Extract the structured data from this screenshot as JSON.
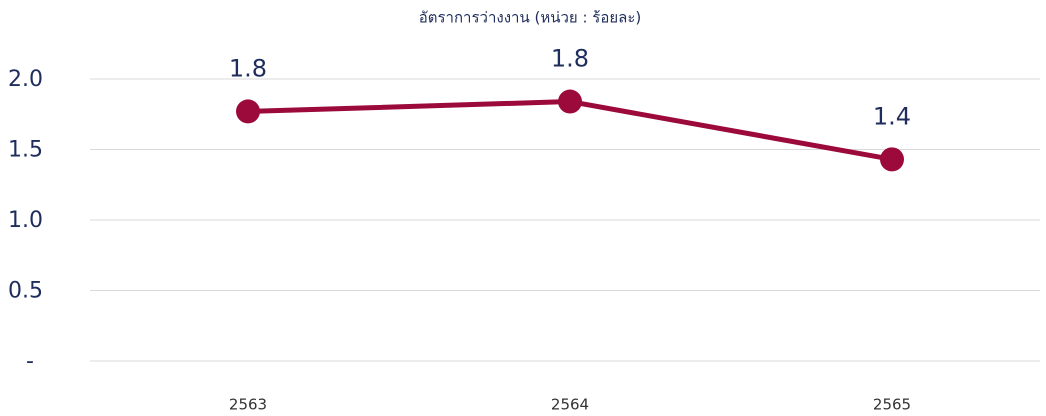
{
  "chart_data": {
    "type": "line",
    "title": "อัตราการว่างงาน (หน่วย : ร้อยละ)",
    "categories": [
      "2563",
      "2564",
      "2565"
    ],
    "series": [
      {
        "name": "อัตราการว่างงาน",
        "color": "#9b0a3b",
        "values": [
          1.77,
          1.84,
          1.43
        ],
        "value_labels": [
          "1.8",
          "1.8",
          "1.4"
        ]
      }
    ],
    "ylim": [
      0,
      2.2
    ],
    "yticks": [
      {
        "value": 0,
        "label": "-"
      },
      0.5,
      {
        "value": 1,
        "label": "1.0"
      },
      1.5,
      {
        "value": 2,
        "label": "2.0"
      }
    ],
    "grid": true
  }
}
